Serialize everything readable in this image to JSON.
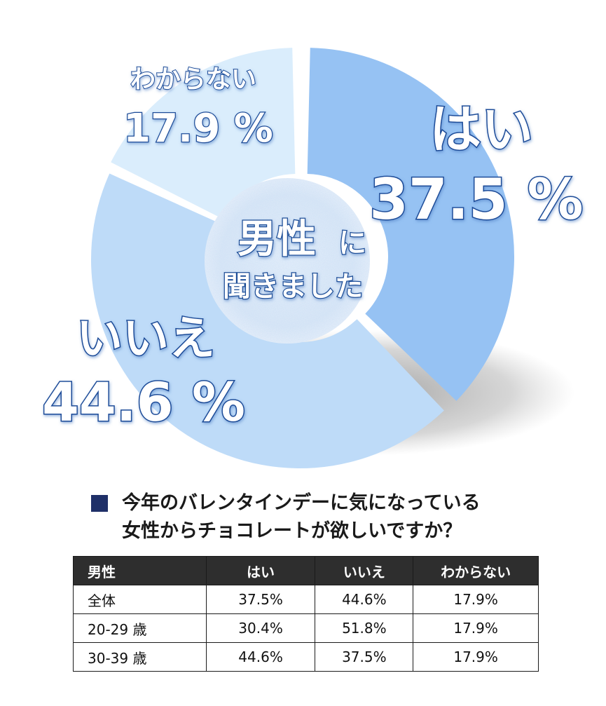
{
  "chart_data": {
    "type": "pie",
    "style": "donut",
    "categories": [
      "はい",
      "いいえ",
      "わからない"
    ],
    "values": [
      37.5,
      44.6,
      17.9
    ],
    "value_labels": [
      "37.5 %",
      "44.6 %",
      "17.9 %"
    ],
    "colors": [
      "#96c2f3",
      "#bedbf8",
      "#daedfc"
    ],
    "center_label": [
      "男性",
      "に",
      "聞きました"
    ],
    "title": "今年のバレンタインデーに気になっている女性からチョコレートが欲しいですか？"
  },
  "question": {
    "line1": "今年のバレンタインデーに気になっている",
    "line2": "女性からチョコレートが欲しいですか？"
  },
  "table": {
    "headers": [
      "男性",
      "はい",
      "いいえ",
      "わからない"
    ],
    "rows": [
      [
        "全体",
        "37.5%",
        "44.6%",
        "17.9%"
      ],
      [
        "20-29 歳",
        "30.4%",
        "51.8%",
        "17.9%"
      ],
      [
        "30-39 歳",
        "44.6%",
        "37.5%",
        "17.9%"
      ]
    ]
  }
}
